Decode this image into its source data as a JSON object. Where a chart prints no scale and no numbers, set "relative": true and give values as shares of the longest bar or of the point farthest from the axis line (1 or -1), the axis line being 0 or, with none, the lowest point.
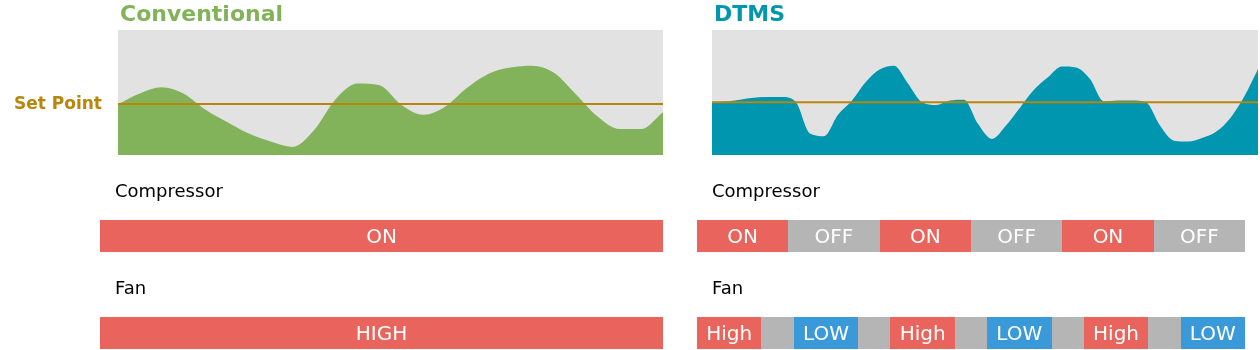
{
  "chart_data": [
    {
      "type": "area",
      "title": "Conventional",
      "relative": true,
      "categories": [
        null,
        null,
        null,
        null,
        null,
        null,
        null,
        null,
        null,
        null,
        null,
        null,
        null,
        null,
        null,
        null,
        null,
        null,
        null,
        null,
        null,
        null,
        null,
        null,
        null,
        null
      ],
      "series": [
        {
          "color": "#82b35a",
          "values": [
            0.57,
            0.69,
            0.76,
            0.69,
            0.51,
            0.37,
            0.24,
            0.15,
            0.09,
            0.28,
            0.63,
            0.8,
            0.78,
            0.56,
            0.45,
            0.54,
            0.75,
            0.91,
            0.98,
            1,
            0.92,
            0.68,
            0.43,
            0.29,
            0.29,
            0.48
          ]
        }
      ],
      "ref_lines": [
        {
          "axis": "y",
          "value": 0.57,
          "label": "Set Point",
          "color": "#b8860b"
        }
      ]
    },
    {
      "type": "area",
      "title": "DTMS",
      "relative": true,
      "categories": [
        null,
        null,
        null,
        null,
        null,
        null,
        null,
        null,
        null,
        null,
        null,
        null,
        null,
        null,
        null,
        null,
        null,
        null,
        null,
        null,
        null,
        null,
        null,
        null,
        null,
        null,
        null,
        null,
        null,
        null,
        null,
        null,
        null,
        null,
        null,
        null,
        null,
        null,
        null,
        null
      ],
      "series": [
        {
          "color": "#0096b0",
          "values": [
            0.59,
            0.6,
            0.62,
            0.64,
            0.65,
            0.65,
            0.59,
            0.24,
            0.21,
            0.45,
            0.61,
            0.82,
            0.96,
            1,
            0.8,
            0.59,
            0.56,
            0.61,
            0.62,
            0.35,
            0.18,
            0.33,
            0.53,
            0.73,
            0.87,
            0.99,
            0.98,
            0.85,
            0.6,
            0.61,
            0.61,
            0.59,
            0.33,
            0.16,
            0.15,
            0.19,
            0.26,
            0.41,
            0.65,
            0.96
          ]
        }
      ],
      "ref_lines": [
        {
          "axis": "y",
          "value": 0.59,
          "color": "#b8860b"
        }
      ]
    },
    {
      "type": "other",
      "title": "Compressor",
      "categories": [
        "ON"
      ],
      "colors": [
        "#e8645c"
      ]
    },
    {
      "type": "other",
      "title": "Compressor",
      "categories": [
        "ON",
        "OFF",
        "ON",
        "OFF",
        "ON",
        "OFF"
      ],
      "colors": [
        "#e8645c",
        "#b5b5b5",
        "#e8645c",
        "#b5b5b5",
        "#e8645c",
        "#b5b5b5"
      ]
    },
    {
      "type": "other",
      "title": "Fan",
      "categories": [
        "HIGH"
      ],
      "colors": [
        "#e8645c"
      ]
    },
    {
      "type": "other",
      "title": "Fan",
      "categories": [
        "High",
        null,
        "LOW",
        null,
        "High",
        null,
        "LOW",
        null,
        "High",
        null,
        "LOW"
      ],
      "colors": [
        "#e8645c",
        "#b5b5b5",
        "#3a9ad9",
        "#b5b5b5",
        "#e8645c",
        "#b5b5b5",
        "#3a9ad9",
        "#b5b5b5",
        "#e8645c",
        "#b5b5b5",
        "#3a9ad9"
      ]
    }
  ]
}
